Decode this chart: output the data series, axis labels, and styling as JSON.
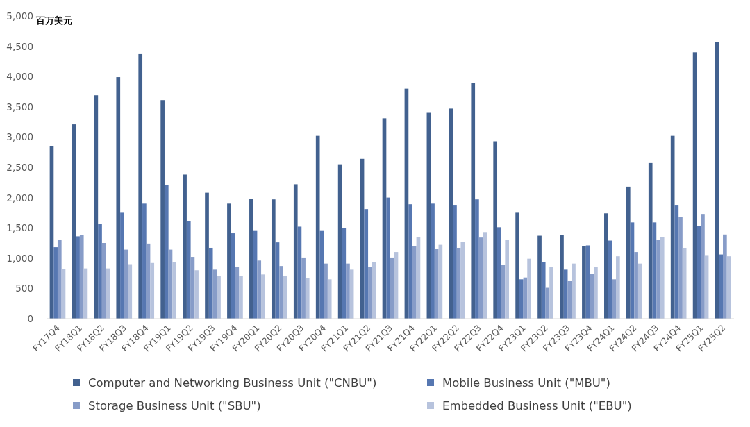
{
  "chart_data": {
    "type": "bar",
    "ylabel": "百万美元",
    "categories": [
      "FY17Q4",
      "FY18Q1",
      "FY18Q2",
      "FY18Q3",
      "FY18Q4",
      "FY19Q1",
      "FY19Q2",
      "FY19Q3",
      "FY19Q4",
      "FY20Q1",
      "FY20Q2",
      "FY20Q3",
      "FY20Q4",
      "FY21Q1",
      "FY21Q2",
      "FY21Q3",
      "FY21Q4",
      "FY22Q1",
      "FY22Q2",
      "FY22Q3",
      "FY22Q4",
      "FY23Q1",
      "FY23Q2",
      "FY23Q3",
      "FY23Q4",
      "FY24Q1",
      "FY24Q2",
      "FY24Q3",
      "FY24Q4",
      "FY25Q1",
      "FY25Q2"
    ],
    "series": [
      {
        "name": "Computer and Networking Business Unit (\"CNBU\")",
        "color": "#42618f",
        "values": [
          2850,
          3210,
          3690,
          3990,
          4370,
          3610,
          2380,
          2080,
          1900,
          1980,
          1970,
          2220,
          3020,
          2550,
          2640,
          3310,
          3800,
          3400,
          3470,
          3890,
          2930,
          1750,
          1370,
          1380,
          1200,
          1740,
          2180,
          2570,
          3020,
          4400,
          4570
        ]
      },
      {
        "name": "Mobile Business Unit (\"MBU\")",
        "color": "#5677b1",
        "values": [
          1180,
          1360,
          1570,
          1750,
          1900,
          2210,
          1610,
          1170,
          1410,
          1460,
          1260,
          1520,
          1460,
          1500,
          1810,
          2000,
          1890,
          1900,
          1880,
          1970,
          1510,
          650,
          940,
          810,
          1210,
          1290,
          1590,
          1590,
          1880,
          1530,
          1060
        ]
      },
      {
        "name": "Storage Business Unit (\"SBU\")",
        "color": "#879cc8",
        "values": [
          1300,
          1380,
          1250,
          1140,
          1240,
          1140,
          1020,
          810,
          850,
          960,
          870,
          1010,
          910,
          910,
          850,
          1010,
          1200,
          1150,
          1170,
          1340,
          890,
          680,
          510,
          630,
          740,
          650,
          1100,
          1300,
          1680,
          1730,
          1390
        ]
      },
      {
        "name": "Embedded Business Unit (\"EBU\")",
        "color": "#b7c3dd",
        "values": [
          820,
          830,
          830,
          900,
          920,
          930,
          800,
          700,
          700,
          730,
          700,
          670,
          650,
          810,
          940,
          1100,
          1350,
          1220,
          1270,
          1430,
          1300,
          990,
          860,
          910,
          860,
          1030,
          910,
          1350,
          1170,
          1050,
          1030
        ]
      }
    ],
    "ylim": [
      0,
      5000
    ],
    "yticks": [
      0,
      500,
      {
        "value": 1000,
        "label": "1,000"
      },
      {
        "value": 1500,
        "label": "1,500"
      },
      {
        "value": 2000,
        "label": "2,000"
      },
      {
        "value": 2500,
        "label": "2,500"
      },
      {
        "value": 3000,
        "label": "3,000"
      },
      {
        "value": 3500,
        "label": "3,500"
      },
      {
        "value": 4000,
        "label": "4,000"
      },
      {
        "value": 4500,
        "label": "4,500"
      },
      {
        "value": 5000,
        "label": "5,000"
      }
    ],
    "legend": "bottom"
  }
}
